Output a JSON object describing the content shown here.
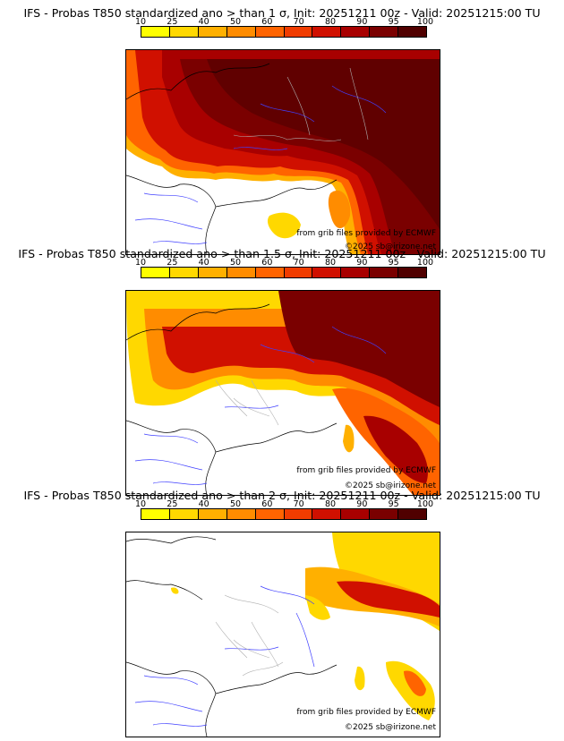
{
  "legend": {
    "labels": [
      "10",
      "25",
      "40",
      "50",
      "60",
      "70",
      "80",
      "90",
      "95",
      "100"
    ],
    "colors": [
      "#ffff00",
      "#ffd800",
      "#ffb000",
      "#ff8c00",
      "#ff6400",
      "#f03c00",
      "#d01000",
      "#a80000",
      "#7a0000",
      "#500000"
    ]
  },
  "panels": [
    {
      "title": "IFS - Probas T850  standardized ano > than 1 σ, Init: 20251211 00z - Valid: 20251215:00 TU",
      "credit_source": "from grib files provided by ECMWF",
      "credit_copyright": "©2025 sb@irizone.net"
    },
    {
      "title": "IFS - Probas T850  standardized ano > than 1.5 σ, Init: 20251211 00z - Valid: 20251215:00 TU",
      "credit_source": "from grib files provided by ECMWF",
      "credit_copyright": "©2025 sb@irizone.net"
    },
    {
      "title": "IFS - Probas T850  standardized ano > than 2 σ, Init: 20251211 00z - Valid: 20251215:00 TU",
      "credit_source": "from grib files provided by ECMWF",
      "credit_copyright": "©2025 sb@irizone.net"
    }
  ]
}
